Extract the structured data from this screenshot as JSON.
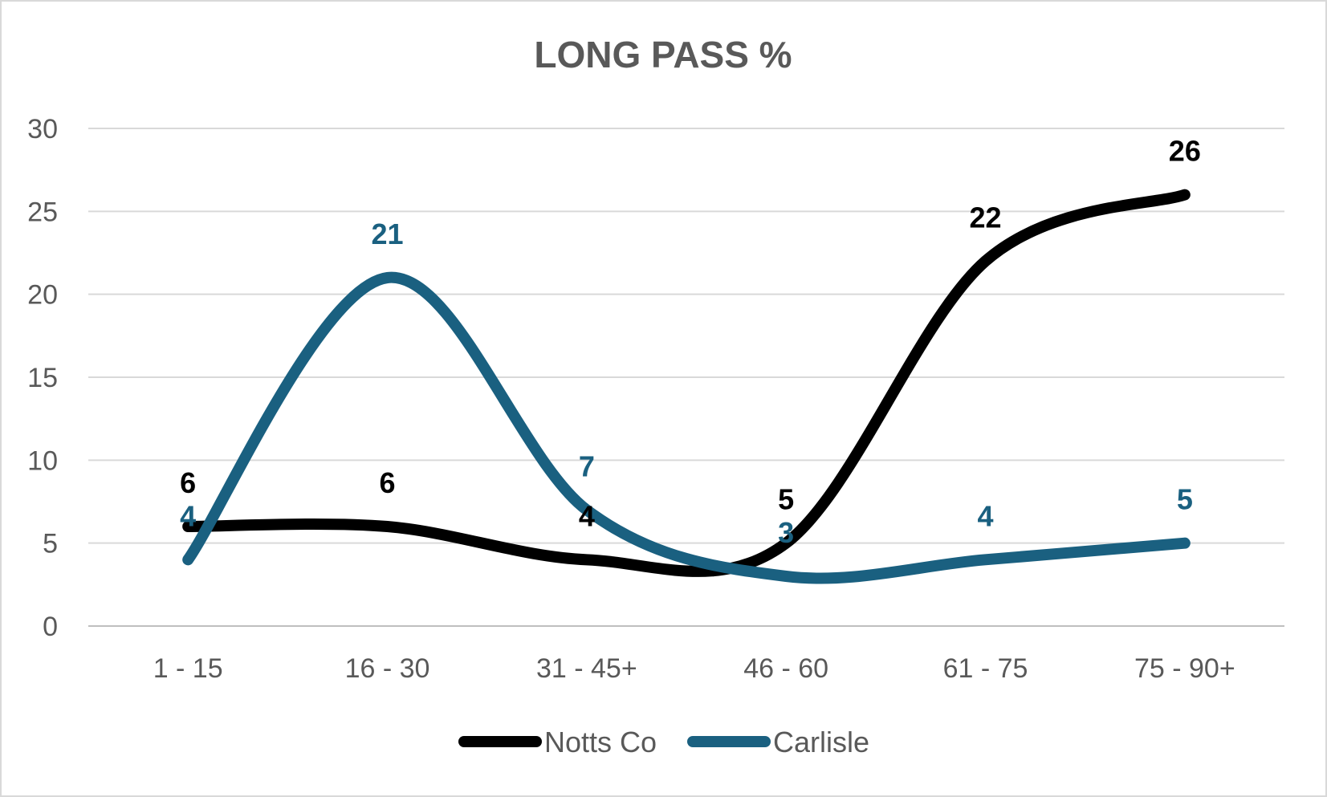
{
  "chart_data": {
    "type": "line",
    "title": "LONG PASS %",
    "xlabel": "",
    "ylabel": "",
    "categories": [
      "1 - 15",
      "16 - 30",
      "31 - 45+",
      "46 - 60",
      "61 - 75",
      "75 - 90+"
    ],
    "ylim": [
      0,
      30
    ],
    "yticks": [
      0,
      5,
      10,
      15,
      20,
      25,
      30
    ],
    "grid": true,
    "smooth": true,
    "legend_position": "bottom",
    "series": [
      {
        "name": "Notts Co",
        "color": "#000000",
        "values": [
          6,
          6,
          4,
          5,
          22,
          26
        ],
        "labels": [
          "6",
          "6",
          "4",
          "5",
          "22",
          "26"
        ]
      },
      {
        "name": "Carlisle",
        "color": "#1a6080",
        "values": [
          4,
          21,
          7,
          3,
          4,
          5
        ],
        "labels": [
          "4",
          "21",
          "7",
          "3",
          "4",
          "5"
        ]
      }
    ]
  }
}
